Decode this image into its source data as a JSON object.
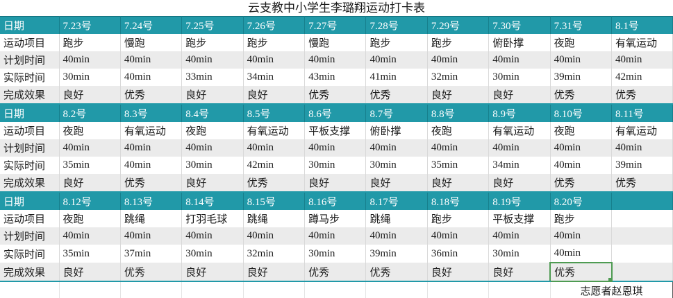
{
  "title": "云支教中小学生李璐翔运动打卡表",
  "labels": {
    "date": "日期",
    "item": "运动项目",
    "planned": "计划时间",
    "actual": "实际时间",
    "effect": "完成效果"
  },
  "sections": [
    {
      "dates": [
        "7.23号",
        "7.24号",
        "7.25号",
        "7.26号",
        "7.27号",
        "7.28号",
        "7.29号",
        "7.30号",
        "7.31号",
        "8.1号"
      ],
      "items": [
        "跑步",
        "慢跑",
        "跑步",
        "跑步",
        "慢跑",
        "跑步",
        "跑步",
        "俯卧撑",
        "夜跑",
        "有氧运动"
      ],
      "planned": [
        "40min",
        "40min",
        "40min",
        "40min",
        "40min",
        "40min",
        "40min",
        "40min",
        "40min",
        "40min"
      ],
      "actual": [
        "30min",
        "40min",
        "33min",
        "34min",
        "43min",
        "41min",
        "32min",
        "30min",
        "39min",
        "42min"
      ],
      "effects": [
        "良好",
        "优秀",
        "良好",
        "良好",
        "优秀",
        "优秀",
        "良好",
        "良好",
        "优秀",
        "优秀"
      ]
    },
    {
      "dates": [
        "8.2号",
        "8.3号",
        "8.4号",
        "8.5号",
        "8.6号",
        "8.7号",
        "8.8号",
        "8.9号",
        "8.10号",
        "8.11号"
      ],
      "items": [
        "夜跑",
        "有氧运动",
        "夜跑",
        "有氧运动",
        "平板支撑",
        "俯卧撑",
        "夜跑",
        "有氧运动",
        "夜跑",
        "有氧运动"
      ],
      "planned": [
        "40min",
        "40min",
        "40min",
        "40min",
        "40min",
        "40min",
        "40min",
        "40min",
        "40min",
        "40min"
      ],
      "actual": [
        "35min",
        "40min",
        "30min",
        "42min",
        "30min",
        "30min",
        "35min",
        "34min",
        "40min",
        "39min"
      ],
      "effects": [
        "良好",
        "优秀",
        "良好",
        "优秀",
        "良好",
        "良好",
        "良好",
        "良好",
        "优秀",
        "优秀"
      ]
    },
    {
      "dates": [
        "8.12号",
        "8.13号",
        "8.14号",
        "8.15号",
        "8.16号",
        "8.17号",
        "8.18号",
        "8.19号",
        "8.20号",
        ""
      ],
      "items": [
        "夜跑",
        "跳绳",
        "打羽毛球",
        "跳绳",
        "蹲马步",
        "跳绳",
        "跑步",
        "平板支撑",
        "跑步",
        ""
      ],
      "planned": [
        "40min",
        "40min",
        "40min",
        "40min",
        "40min",
        "40min",
        "40min",
        "40min",
        "40min",
        ""
      ],
      "actual": [
        "35min",
        "37min",
        "30min",
        "32min",
        "30min",
        "39min",
        "36min",
        "30min",
        "40min",
        ""
      ],
      "effects": [
        "良好",
        "优秀",
        "良好",
        "良好",
        "优秀",
        "优秀",
        "良好",
        "良好",
        "优秀",
        ""
      ]
    }
  ],
  "selection": {
    "section_index": 2,
    "row": "effect",
    "col_index": 8,
    "value": "优秀"
  },
  "footer": {
    "volunteer": "志愿者赵恩琪"
  },
  "colors": {
    "header": "#2199A8",
    "header_separator": "#17808D",
    "header_top": "#116B77",
    "header_text": "#FFFFFF",
    "band": "#EBEBEB",
    "gridline": "#D9D9D9",
    "selection": "#4E9B52",
    "text": "#1A1A1A"
  }
}
